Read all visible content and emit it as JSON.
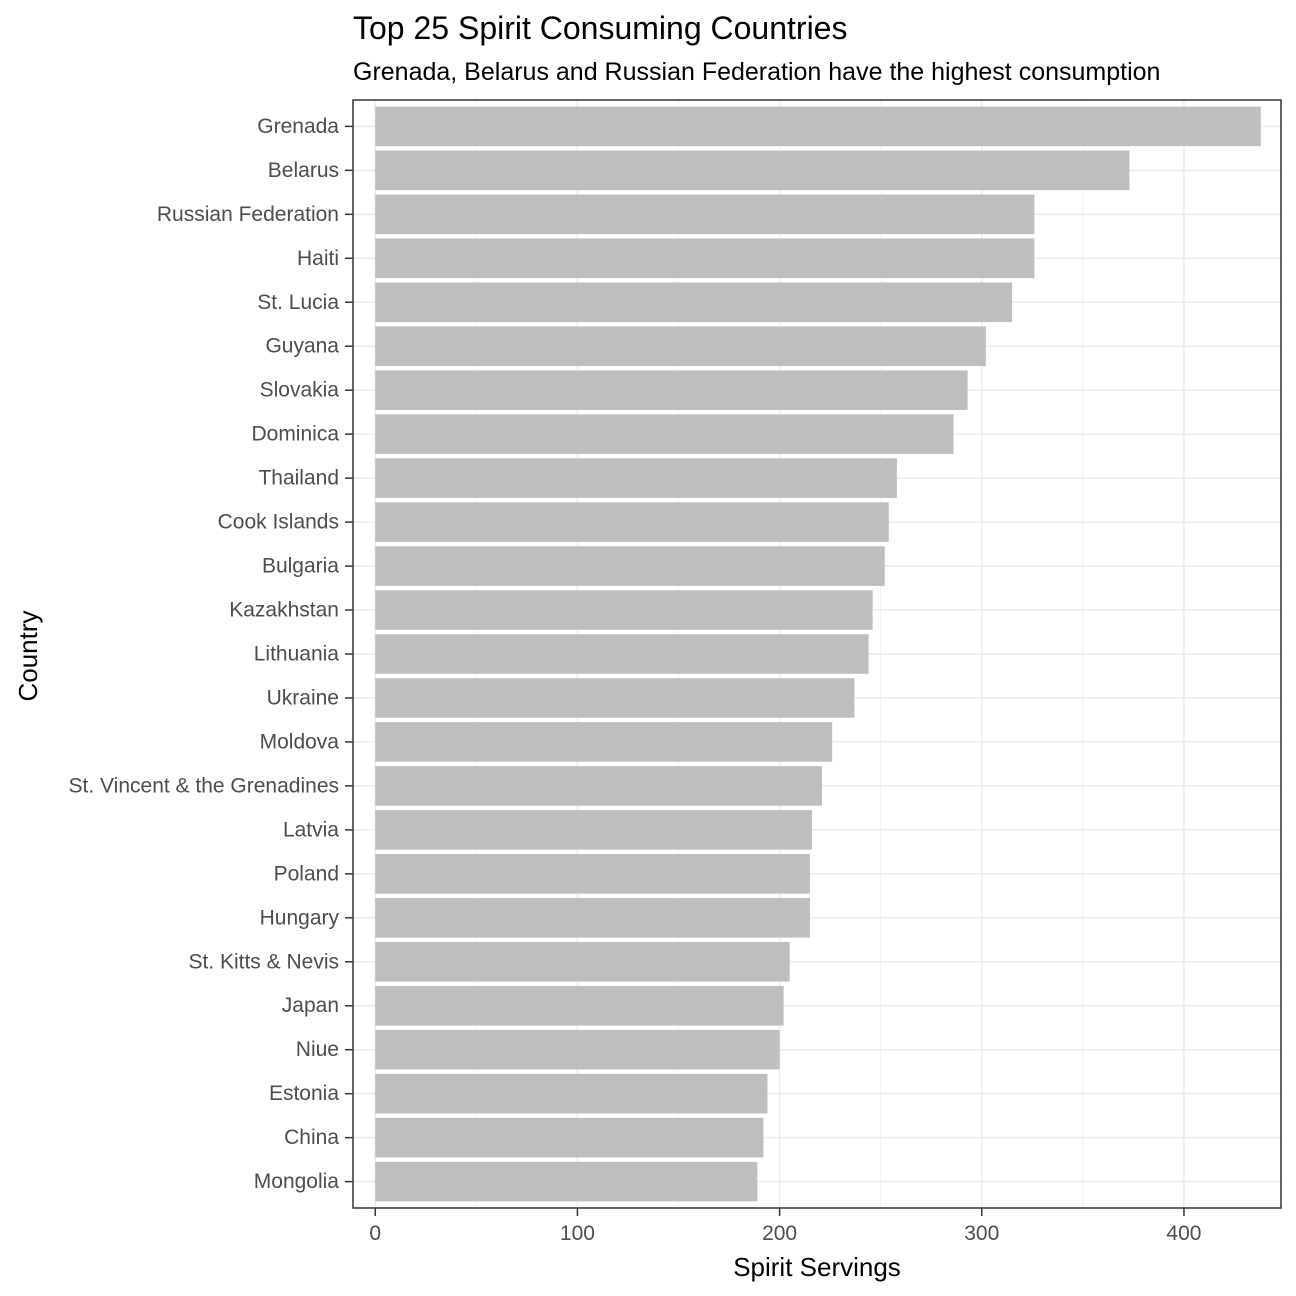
{
  "chart_data": {
    "type": "bar",
    "orientation": "horizontal",
    "title": "Top 25 Spirit Consuming Countries",
    "subtitle": "Grenada, Belarus and Russian Federation have the highest consumption",
    "xlabel": "Spirit Servings",
    "ylabel": "Country",
    "xlim": [
      -11,
      448
    ],
    "xticks": [
      0,
      100,
      200,
      300,
      400
    ],
    "grid": true,
    "bar_color": "#bebebe",
    "categories": [
      "Grenada",
      "Belarus",
      "Russian Federation",
      "Haiti",
      "St. Lucia",
      "Guyana",
      "Slovakia",
      "Dominica",
      "Thailand",
      "Cook Islands",
      "Bulgaria",
      "Kazakhstan",
      "Lithuania",
      "Ukraine",
      "Moldova",
      "St. Vincent & the Grenadines",
      "Latvia",
      "Poland",
      "Hungary",
      "St. Kitts & Nevis",
      "Japan",
      "Niue",
      "Estonia",
      "China",
      "Mongolia"
    ],
    "values": [
      438,
      373,
      326,
      326,
      315,
      302,
      293,
      286,
      258,
      254,
      252,
      246,
      244,
      237,
      226,
      221,
      216,
      215,
      215,
      205,
      202,
      200,
      194,
      192,
      189
    ]
  }
}
